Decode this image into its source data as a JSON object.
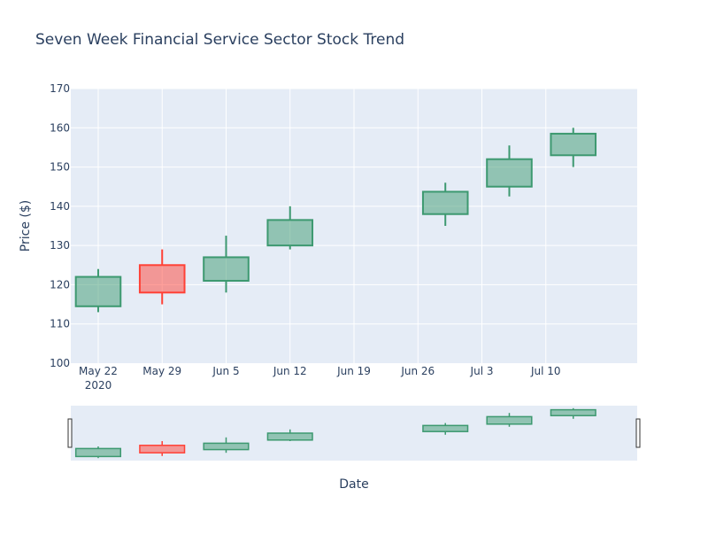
{
  "chart_data": {
    "type": "candlestick",
    "title": "Seven Week Financial Service Sector Stock Trend",
    "xlabel": "Date",
    "ylabel": "Price ($)",
    "ylim": [
      100,
      170
    ],
    "y_ticks": [
      100,
      110,
      120,
      130,
      140,
      150,
      160,
      170
    ],
    "x_ticks": [
      {
        "date": "2020-05-22",
        "label": "May 22",
        "sublabel": "2020"
      },
      {
        "date": "2020-05-29",
        "label": "May 29",
        "sublabel": ""
      },
      {
        "date": "2020-06-05",
        "label": "Jun 5",
        "sublabel": ""
      },
      {
        "date": "2020-06-12",
        "label": "Jun 12",
        "sublabel": ""
      },
      {
        "date": "2020-06-19",
        "label": "Jun 19",
        "sublabel": ""
      },
      {
        "date": "2020-06-26",
        "label": "Jun 26",
        "sublabel": ""
      },
      {
        "date": "2020-07-03",
        "label": "Jul 3",
        "sublabel": ""
      },
      {
        "date": "2020-07-10",
        "label": "Jul 10",
        "sublabel": ""
      }
    ],
    "xlim": [
      "2020-05-19",
      "2020-07-20"
    ],
    "candles": [
      {
        "date": "2020-05-22",
        "open": 114.5,
        "high": 124,
        "low": 113,
        "close": 122
      },
      {
        "date": "2020-05-29",
        "open": 125,
        "high": 129,
        "low": 115,
        "close": 118
      },
      {
        "date": "2020-06-05",
        "open": 121,
        "high": 132.5,
        "low": 118,
        "close": 127
      },
      {
        "date": "2020-06-12",
        "open": 130,
        "high": 140,
        "low": 129,
        "close": 136.5
      },
      {
        "date": "2020-06-29",
        "open": 138,
        "high": 146,
        "low": 135,
        "close": 143.7
      },
      {
        "date": "2020-07-06",
        "open": 145,
        "high": 155.5,
        "low": 142.5,
        "close": 152
      },
      {
        "date": "2020-07-13",
        "open": 153,
        "high": 160,
        "low": 150,
        "close": 158.5
      }
    ],
    "increasing_color": "#3D9970",
    "increasing_fill": "rgba(61,153,112,0.5)",
    "decreasing_color": "#FF4136",
    "decreasing_fill": "rgba(255,65,54,0.5)",
    "plot_bg": "#E5ECF6",
    "grid": true,
    "legend": "none",
    "rangeslider": true
  }
}
